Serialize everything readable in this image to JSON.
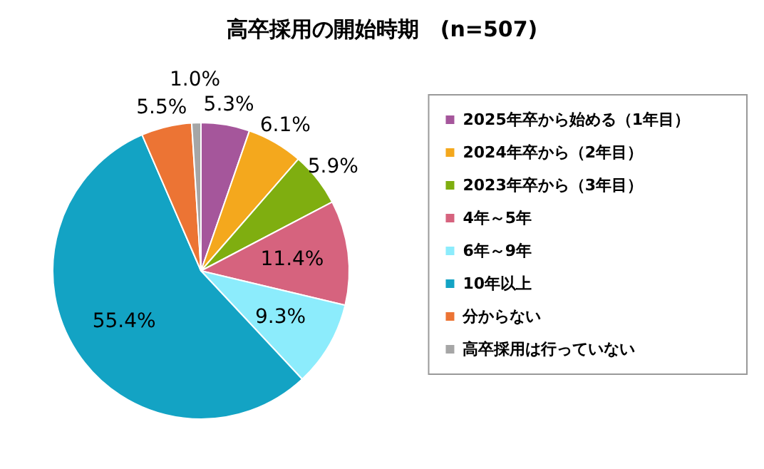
{
  "chart_data": {
    "type": "pie",
    "title": "高卒採用の開始時期　(n=507)",
    "categories": [
      "2025年卒から始める（1年目）",
      "2024年卒から（2年目）",
      "2023年卒から（3年目）",
      "4年～5年",
      "6年～9年",
      "10年以上",
      "分からない",
      "高卒採用は行っていない"
    ],
    "values": [
      5.3,
      6.1,
      5.9,
      11.4,
      9.3,
      55.4,
      5.5,
      1.0
    ],
    "value_labels": [
      "5.3%",
      "6.1%",
      "5.9%",
      "11.4%",
      "9.3%",
      "55.4%",
      "5.5%",
      "1.0%"
    ],
    "colors": [
      "#a5569b",
      "#f4a81d",
      "#7fae10",
      "#d6637e",
      "#8cecfc",
      "#13a3c4",
      "#ec7434",
      "#a6a6a6"
    ],
    "legend": "right"
  }
}
